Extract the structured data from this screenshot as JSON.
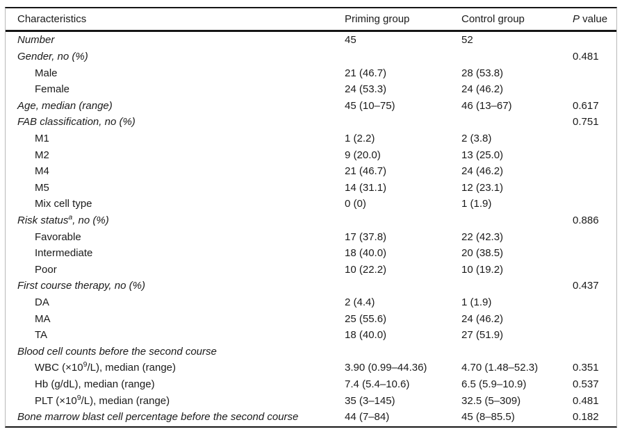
{
  "table": {
    "header": {
      "characteristics": "Characteristics",
      "priming": "Priming group",
      "control": "Control group",
      "p_italic": "P",
      "p_rest": " value"
    },
    "rows": [
      {
        "label": "Number",
        "priming": "45",
        "control": "52",
        "p": ""
      },
      {
        "label": "Gender, no (%)",
        "priming": "",
        "control": "",
        "p": "0.481"
      },
      {
        "label": "Male",
        "priming": "21 (46.7)",
        "control": "28 (53.8)",
        "p": ""
      },
      {
        "label": "Female",
        "priming": "24 (53.3)",
        "control": "24 (46.2)",
        "p": ""
      },
      {
        "label": "Age, median (range)",
        "priming": "45 (10–75)",
        "control": "46 (13–67)",
        "p": "0.617"
      },
      {
        "label": "FAB classification, no (%)",
        "priming": "",
        "control": "",
        "p": "0.751"
      },
      {
        "label": "M1",
        "priming": "1 (2.2)",
        "control": "2 (3.8)",
        "p": ""
      },
      {
        "label": "M2",
        "priming": "9 (20.0)",
        "control": "13 (25.0)",
        "p": ""
      },
      {
        "label": "M4",
        "priming": "21 (46.7)",
        "control": "24 (46.2)",
        "p": ""
      },
      {
        "label": "M5",
        "priming": "14 (31.1)",
        "control": "12 (23.1)",
        "p": ""
      },
      {
        "label": "Mix cell type",
        "priming": "0 (0)",
        "control": "1 (1.9)",
        "p": ""
      },
      {
        "label": "Risk status",
        "sup": "a",
        "label2": ", no (%)",
        "priming": "",
        "control": "",
        "p": "0.886"
      },
      {
        "label": "Favorable",
        "priming": "17 (37.8)",
        "control": "22 (42.3)",
        "p": ""
      },
      {
        "label": "Intermediate",
        "priming": "18 (40.0)",
        "control": "20 (38.5)",
        "p": ""
      },
      {
        "label": "Poor",
        "priming": "10 (22.2)",
        "control": "10 (19.2)",
        "p": ""
      },
      {
        "label": "First course therapy, no (%)",
        "priming": "",
        "control": "",
        "p": "0.437"
      },
      {
        "label": "DA",
        "priming": "2 (4.4)",
        "control": "1 (1.9)",
        "p": ""
      },
      {
        "label": "MA",
        "priming": "25 (55.6)",
        "control": "24 (46.2)",
        "p": ""
      },
      {
        "label": "TA",
        "priming": "18 (40.0)",
        "control": "27 (51.9)",
        "p": ""
      },
      {
        "label": "Blood cell counts before the second course",
        "priming": "",
        "control": "",
        "p": ""
      },
      {
        "label": "WBC (×10",
        "sup": "9",
        "label2": "/L), median (range)",
        "priming": "3.90 (0.99–44.36)",
        "control": "4.70 (1.48–52.3)",
        "p": "0.351"
      },
      {
        "label": "Hb (g/dL), median (range)",
        "priming": "7.4 (5.4–10.6)",
        "control": "6.5 (5.9–10.9)",
        "p": "0.537"
      },
      {
        "label": "PLT (×10",
        "sup": "9",
        "label2": "/L), median (range)",
        "priming": "35 (3–145)",
        "control": "32.5 (5–309)",
        "p": "0.481"
      },
      {
        "label": "Bone marrow blast cell percentage before the second course",
        "priming": "44 (7–84)",
        "control": "45 (8–85.5)",
        "p": "0.182"
      }
    ]
  }
}
